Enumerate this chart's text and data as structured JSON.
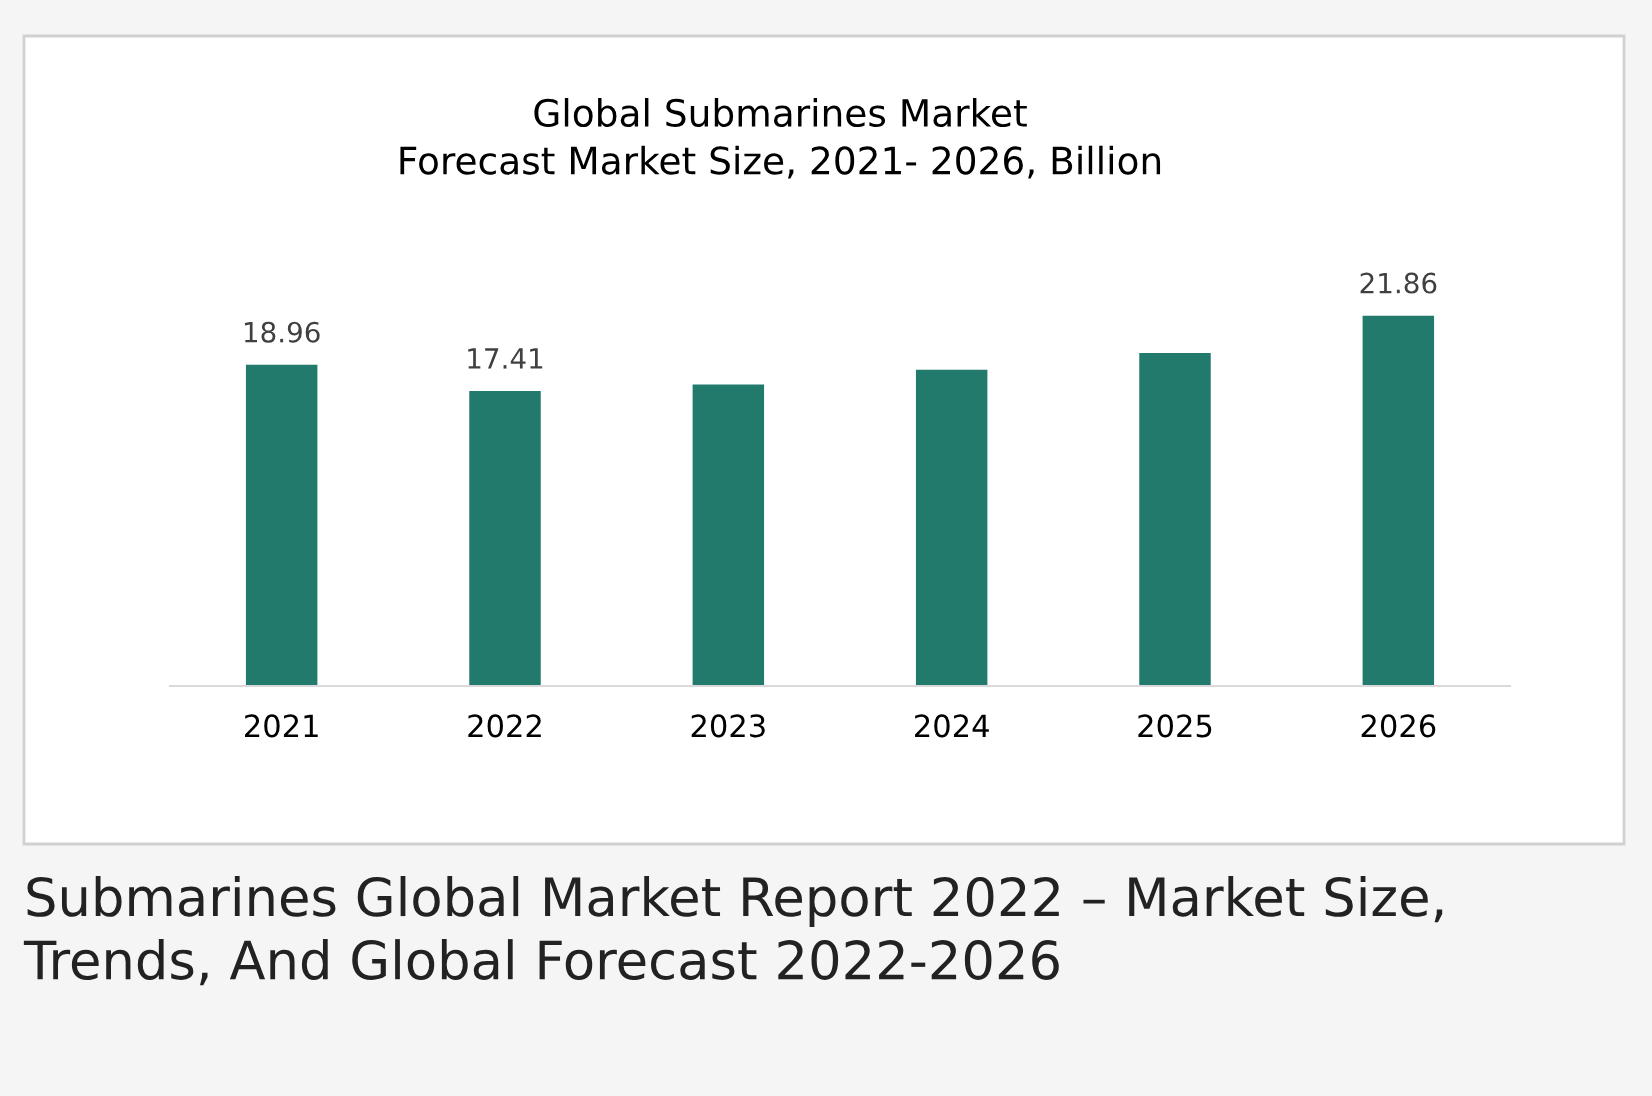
{
  "chart_data": {
    "type": "bar",
    "title": "Global Submarines Market\nForecast Market Size, 2021- 2026, Billion",
    "categories": [
      "2021",
      "2022",
      "2023",
      "2024",
      "2025",
      "2026"
    ],
    "values": [
      18.96,
      17.41,
      17.8,
      18.66,
      19.65,
      21.86
    ],
    "value_labels": [
      "18.96",
      "17.41",
      null,
      null,
      null,
      "21.86"
    ],
    "color": "#217a6b",
    "annotations": [
      "Submarines Global Market Report 2022 – Market Size, Trends, And Global Forecast 2022-2026"
    ]
  }
}
